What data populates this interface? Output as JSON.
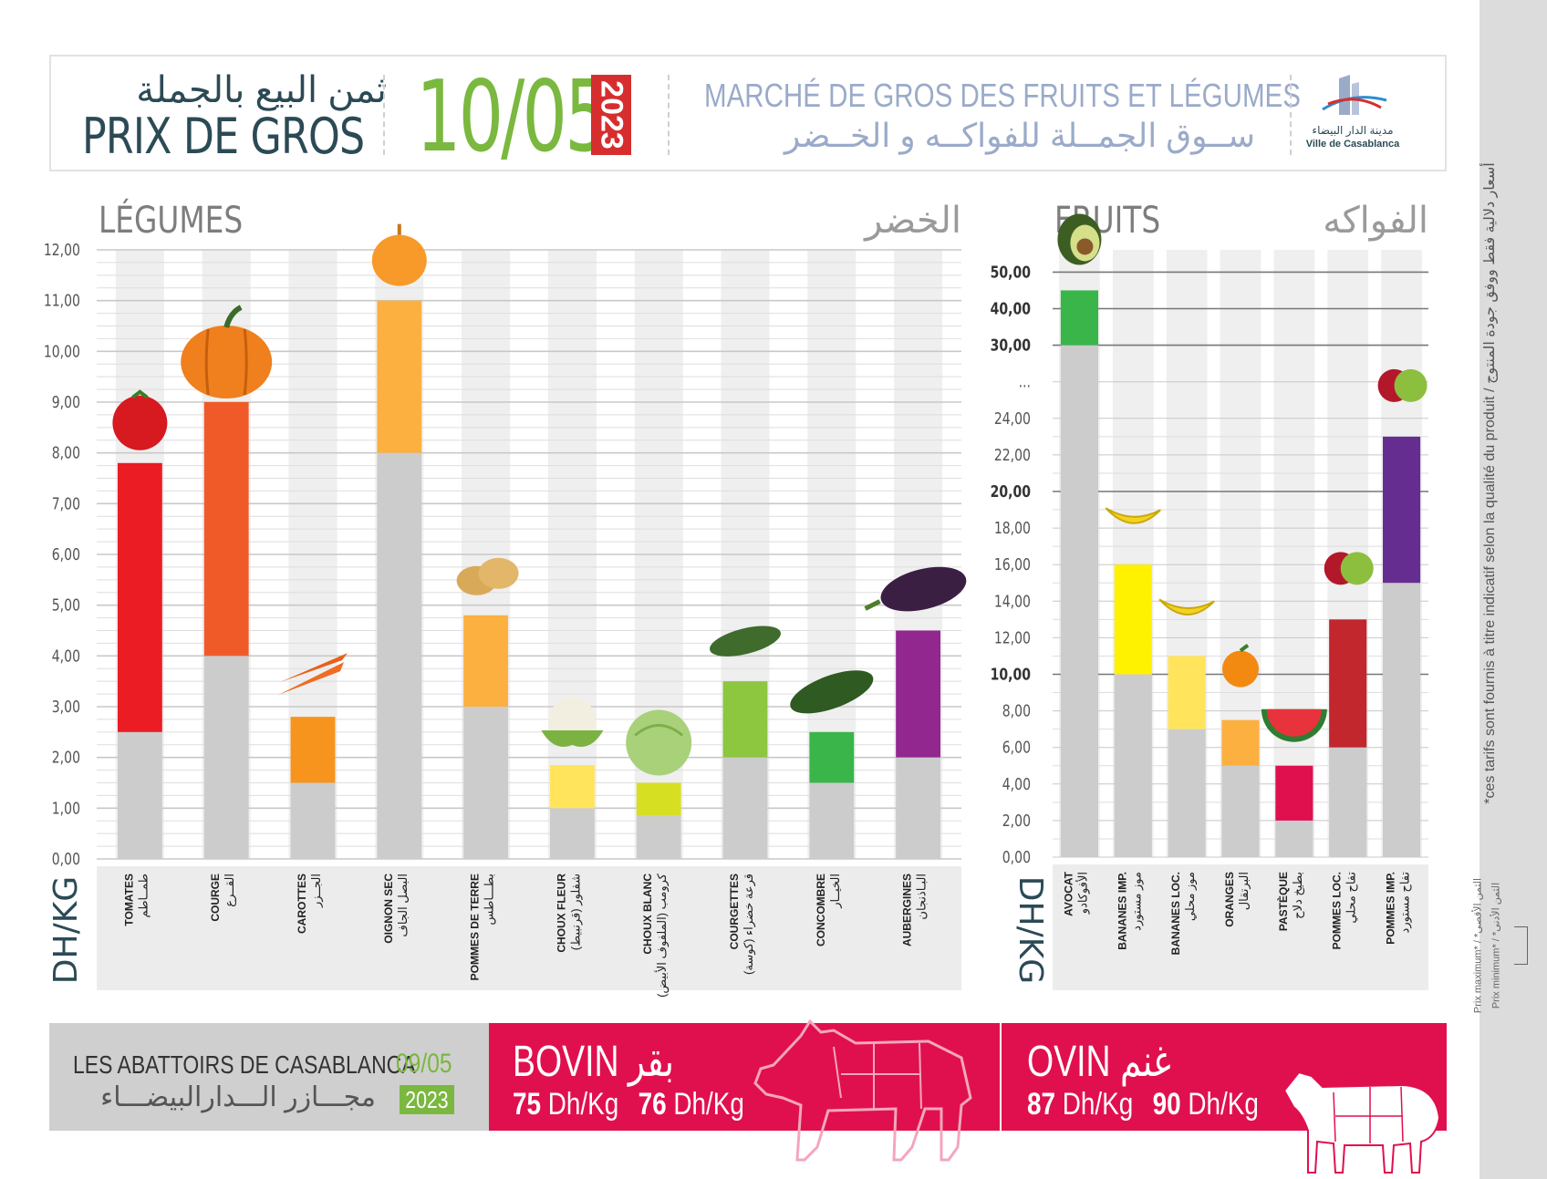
{
  "header": {
    "title_ar": "ثمن البيع بالجملة",
    "title_fr": "PRIX DE GROS",
    "date": "10/05",
    "year": "2023",
    "market_fr": "MARCHÉ DE GROS DES FRUITS ET LÉGUMES",
    "market_ar": "ســوق الجمــلة للفواكــه و الخــضر",
    "logo_ar": "مدينة الدار البيضاء",
    "logo_fr": "Ville de Casablanca"
  },
  "sidebar": {
    "note": "*ces tarifs sont fournis à titre indicatif selon la qualité du produit / أسعار دلالية فقط ووفق جودة المنتوج",
    "legend_max": "Prix maximum* / *الثمن الأقصى",
    "legend_min": "Prix minimum* / *الثمن الأدنى"
  },
  "colors": {
    "grey_bar": "#cccccc",
    "green_accent": "#7ab83f",
    "red_accent": "#e0104e",
    "header_text": "#2b4a55"
  },
  "chart_data": [
    {
      "type": "bar",
      "subtype": "floating-range",
      "title_fr": "LÉGUMES",
      "title_ar": "الخضر",
      "ylabel": "DH/KG",
      "ylim": [
        0,
        12
      ],
      "yticks": [
        "0,00",
        "1,00",
        "2,00",
        "3,00",
        "4,00",
        "5,00",
        "6,00",
        "7,00",
        "8,00",
        "9,00",
        "10,00",
        "11,00",
        "12,00"
      ],
      "categories": [
        {
          "fr": "TOMATES",
          "ar": "طمــاطم",
          "min": 2.5,
          "max": 7.8,
          "color": "#ec1c24",
          "icon": "tomato-icon"
        },
        {
          "fr": "COURGE",
          "ar": "القــرع",
          "min": 4.0,
          "max": 9.0,
          "color": "#f05a28",
          "icon": "pumpkin-icon"
        },
        {
          "fr": "CAROTTES",
          "ar": "الجــزر",
          "min": 1.5,
          "max": 2.8,
          "color": "#f7941d",
          "icon": "carrot-icon"
        },
        {
          "fr": "OIGNON SEC",
          "ar": "البصل الجاف",
          "min": 8.0,
          "max": 11.0,
          "color": "#fbb040",
          "icon": "onion-icon"
        },
        {
          "fr": "POMMES DE TERRE",
          "ar": "بطـــاطس",
          "min": 3.0,
          "max": 4.8,
          "color": "#fbb040",
          "icon": "potato-icon"
        },
        {
          "fr": "CHOUX FLEUR",
          "ar": "شفلور (قرنبيط)",
          "min": 1.0,
          "max": 1.85,
          "color": "#ffe45c",
          "icon": "cauliflower-icon"
        },
        {
          "fr": "CHOUX BLANC",
          "ar": "كرومب (الملفوف الأبيض)",
          "min": 0.85,
          "max": 1.5,
          "color": "#d7df23",
          "icon": "cabbage-icon"
        },
        {
          "fr": "COURGETTES",
          "ar": "قرعة خضراء (كوسة)",
          "min": 2.0,
          "max": 3.5,
          "color": "#8dc63f",
          "icon": "zucchini-icon"
        },
        {
          "fr": "CONCOMBRE",
          "ar": "الخيــار",
          "min": 1.5,
          "max": 2.5,
          "color": "#39b54a",
          "icon": "cucumber-icon"
        },
        {
          "fr": "AUBERGINES",
          "ar": "البـاذنجان",
          "min": 2.0,
          "max": 4.5,
          "color": "#92278f",
          "icon": "eggplant-icon"
        }
      ]
    },
    {
      "type": "bar",
      "subtype": "floating-range",
      "title_fr": "FRUITS",
      "title_ar": "الفواكه",
      "ylabel": "DH/KG",
      "ylim": [
        0,
        50
      ],
      "axis_break": "...",
      "yticks": [
        "0,00",
        "2,00",
        "4,00",
        "6,00",
        "8,00",
        "10,00",
        "12,00",
        "14,00",
        "16,00",
        "18,00",
        "20,00",
        "22,00",
        "24,00",
        "...",
        "30,00",
        "40,00",
        "50,00"
      ],
      "categories": [
        {
          "fr": "AVOCAT",
          "ar": "الأفوكادو",
          "min": 30.0,
          "max": 45.0,
          "color": "#39b54a",
          "icon": "avocado-icon"
        },
        {
          "fr": "BANANES IMP.",
          "ar": "موز مستورد",
          "min": 10.0,
          "max": 16.0,
          "color": "#fff200",
          "icon": "banana-icon"
        },
        {
          "fr": "BANANES LOC.",
          "ar": "موز محلي",
          "min": 7.0,
          "max": 11.0,
          "color": "#ffe45c",
          "icon": "banana-icon"
        },
        {
          "fr": "ORANGES",
          "ar": "البرتقال",
          "min": 5.0,
          "max": 7.5,
          "color": "#fbb040",
          "icon": "orange-icon"
        },
        {
          "fr": "PASTÈQUE",
          "ar": "بطيخ دلاح",
          "min": 2.0,
          "max": 5.0,
          "color": "#e0104e",
          "icon": "watermelon-icon"
        },
        {
          "fr": "POMMES LOC.",
          "ar": "تفاح محلي",
          "min": 6.0,
          "max": 13.0,
          "color": "#c1272d",
          "icon": "apple-icon"
        },
        {
          "fr": "POMMES IMP.",
          "ar": "تفاح مستورد",
          "min": 15.0,
          "max": 23.0,
          "color": "#662d91",
          "icon": "apple-icon"
        }
      ]
    }
  ],
  "abattoirs": {
    "title_fr": "LES ABATTOIRS DE CASABLANCA",
    "title_ar": "مجـــازر الـــدارالبيضـــاء",
    "date": "09/05",
    "year": "2023",
    "bovin": {
      "name": "BOVIN",
      "name_ar": "بقر",
      "min_value": "75",
      "max_value": "76",
      "unit": "Dh/Kg",
      "icon": "cow-icon"
    },
    "ovin": {
      "name": "OVIN",
      "name_ar": "غنم",
      "min_value": "87",
      "max_value": "90",
      "unit": "Dh/Kg",
      "icon": "sheep-icon"
    }
  }
}
